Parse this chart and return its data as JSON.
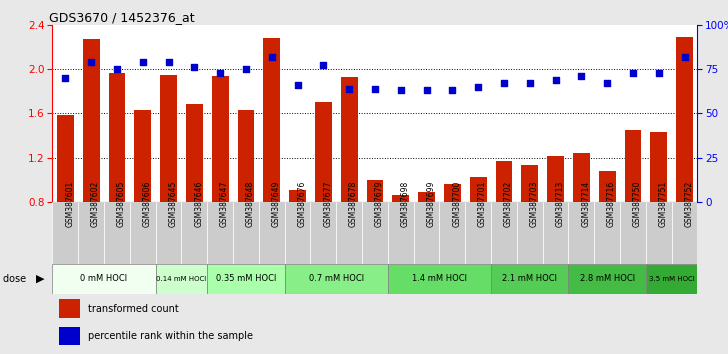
{
  "title": "GDS3670 / 1452376_at",
  "samples": [
    "GSM387601",
    "GSM387602",
    "GSM387605",
    "GSM387606",
    "GSM387645",
    "GSM387646",
    "GSM387647",
    "GSM387648",
    "GSM387649",
    "GSM387676",
    "GSM387677",
    "GSM387678",
    "GSM387679",
    "GSM387698",
    "GSM387699",
    "GSM387700",
    "GSM387701",
    "GSM387702",
    "GSM387703",
    "GSM387713",
    "GSM387714",
    "GSM387716",
    "GSM387750",
    "GSM387751",
    "GSM387752"
  ],
  "bar_values": [
    1.58,
    2.27,
    1.96,
    1.63,
    1.95,
    1.68,
    1.94,
    1.63,
    2.28,
    0.91,
    1.7,
    1.93,
    1.0,
    0.86,
    0.89,
    0.96,
    1.02,
    1.17,
    1.13,
    1.21,
    1.24,
    1.08,
    1.45,
    1.43,
    2.29
  ],
  "dot_values": [
    70,
    79,
    75,
    79,
    79,
    76,
    73,
    75,
    82,
    66,
    77,
    64,
    64,
    63,
    63,
    63,
    65,
    67,
    67,
    69,
    71,
    67,
    73,
    73,
    82
  ],
  "dose_groups": [
    {
      "label": "0 mM HOCl",
      "start": 0,
      "end": 4,
      "color": "#f0fff0"
    },
    {
      "label": "0.14 mM HOCl",
      "start": 4,
      "end": 6,
      "color": "#ccffcc"
    },
    {
      "label": "0.35 mM HOCl",
      "start": 6,
      "end": 9,
      "color": "#aaffaa"
    },
    {
      "label": "0.7 mM HOCl",
      "start": 9,
      "end": 13,
      "color": "#88ee88"
    },
    {
      "label": "1.4 mM HOCl",
      "start": 13,
      "end": 17,
      "color": "#66dd66"
    },
    {
      "label": "2.1 mM HOCl",
      "start": 17,
      "end": 20,
      "color": "#55cc55"
    },
    {
      "label": "2.8 mM HOCl",
      "start": 20,
      "end": 23,
      "color": "#44bb44"
    },
    {
      "label": "3.5 mM HOCl",
      "start": 23,
      "end": 25,
      "color": "#33aa33"
    }
  ],
  "ylim_left": [
    0.8,
    2.4
  ],
  "ylim_right": [
    0,
    100
  ],
  "yticks_left": [
    0.8,
    1.2,
    1.6,
    2.0,
    2.4
  ],
  "yticks_right": [
    0,
    25,
    50,
    75,
    100
  ],
  "bar_color": "#cc2200",
  "dot_color": "#0000cc",
  "background_color": "#e8e8e8",
  "plot_bg_color": "#ffffff",
  "tick_area_color": "#cccccc"
}
